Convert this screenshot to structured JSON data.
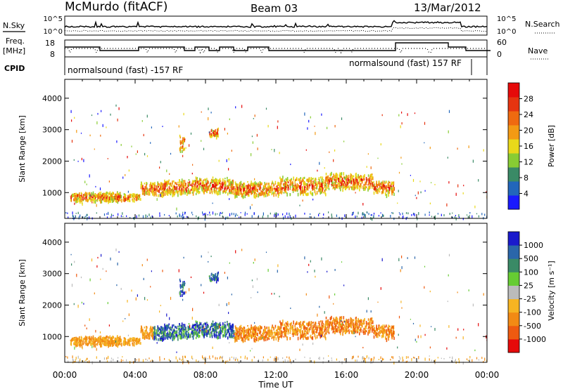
{
  "header": {
    "station": "McMurdo (fitACF)",
    "beam": "Beam 03",
    "date": "13/Mar/2012"
  },
  "noise_panel": {
    "left_label": "N.Sky",
    "left_ticks": [
      "10^5",
      "10^0"
    ],
    "right_label": "N.Search",
    "right_ticks": [
      "10^5",
      "10^0"
    ]
  },
  "freq_panel": {
    "left_label_line1": "Freq.",
    "left_label_line2": "[MHz]",
    "left_ticks": [
      "18",
      "8"
    ],
    "right_label": "Nave",
    "right_ticks": [
      "60",
      "0"
    ]
  },
  "cpid_panel": {
    "label": "CPID",
    "mode_1": "normalsound (fast) -157 RF",
    "mode_2": "normalsound (fast) 157 RF"
  },
  "colors": {
    "power_scale": [
      "#1a1aff",
      "#2266bb",
      "#3a8a66",
      "#88cc33",
      "#e8d81a",
      "#f39a14",
      "#ef6a10",
      "#e63410",
      "#e60a0a"
    ],
    "velocity_scale": [
      "#e60a0a",
      "#ee5a10",
      "#f28a14",
      "#f6b422",
      "#bbbbbb",
      "#66cc33",
      "#3a8a66",
      "#2a66aa",
      "#1a1acc"
    ]
  },
  "chart_data": [
    {
      "type": "heatmap",
      "name": "power-panel",
      "xlabel": "",
      "ylabel": "Slant Range [km]",
      "xlim": [
        0,
        24
      ],
      "ylim": [
        180,
        4600
      ],
      "y_ticks": [
        "1000",
        "2000",
        "3000",
        "4000"
      ],
      "colorbar_label": "Power [dB]",
      "colorbar_ticks": [
        "28",
        "24",
        "20",
        "16",
        "12",
        "8",
        "4"
      ],
      "colorbar_range": [
        0,
        32
      ]
    },
    {
      "type": "heatmap",
      "name": "velocity-panel",
      "xlabel": "Time UT",
      "ylabel": "Slant Range [km]",
      "xlim": [
        0,
        24
      ],
      "ylim": [
        180,
        4600
      ],
      "x_ticks": [
        "00:00",
        "04:00",
        "08:00",
        "12:00",
        "16:00",
        "20:00",
        "00:00"
      ],
      "y_ticks": [
        "1000",
        "2000",
        "3000",
        "4000"
      ],
      "colorbar_label": "Velocity [m s⁻¹]",
      "colorbar_ticks": [
        "1000",
        "500",
        "100",
        "25",
        "-25",
        "-100",
        "-500",
        "-1000"
      ]
    }
  ]
}
